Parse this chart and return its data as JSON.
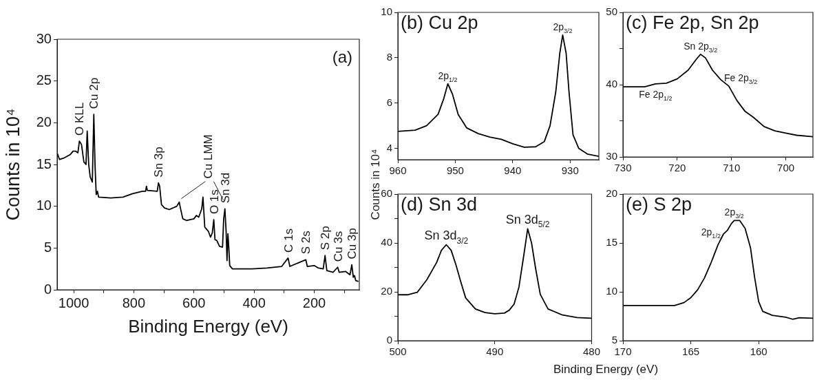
{
  "chart_data": [
    {
      "type": "line",
      "title": "(a)",
      "xlabel": "Binding Energy (eV)",
      "ylabel": "Counts in 10⁴",
      "color": "#000000",
      "xlim": [
        1055,
        50
      ],
      "xticks": [
        1000,
        {
          "value": 900,
          "label": null
        },
        800,
        {
          "value": 700,
          "label": null
        },
        600,
        {
          "value": 500,
          "label": null
        },
        400,
        {
          "value": 300,
          "label": null
        },
        200,
        {
          "value": 100,
          "label": null
        }
      ],
      "ylim": [
        0,
        30
      ],
      "yticks": [
        0,
        5,
        10,
        15,
        20,
        25,
        30
      ],
      "x": [
        1054,
        1047,
        1031,
        1011,
        1002,
        994,
        986,
        981,
        974,
        966,
        959,
        955,
        950,
        945,
        938,
        933,
        929,
        925,
        921,
        917,
        877,
        836,
        804,
        771,
        761,
        758,
        755,
        722,
        718,
        714,
        708,
        698,
        682,
        657,
        649,
        645,
        637,
        625,
        600,
        592,
        584,
        574,
        570,
        564,
        552,
        545,
        539,
        534,
        530,
        524,
        515,
        505,
        501,
        497,
        493,
        490,
        487,
        484,
        481,
        472,
        406,
        357,
        308,
        287,
        281,
        228,
        223,
        200,
        186,
        170,
        164,
        158,
        137,
        122,
        117,
        96,
        81,
        75,
        70,
        66,
        62,
        53
      ],
      "values": [
        16.3,
        15.6,
        15.8,
        16.2,
        16.6,
        16.6,
        16.4,
        17.8,
        17.4,
        15.3,
        15.0,
        19.0,
        15.0,
        13.5,
        12.9,
        21.0,
        15.0,
        11.4,
        11.8,
        11.1,
        11.0,
        11.1,
        11.5,
        11.8,
        11.8,
        12.4,
        11.9,
        11.8,
        12.8,
        12.4,
        10.2,
        9.8,
        9.6,
        10.0,
        10.5,
        9.8,
        8.5,
        8.3,
        8.5,
        8.9,
        8.7,
        9.7,
        11.1,
        7.5,
        7.0,
        6.3,
        6.8,
        8.4,
        6.0,
        5.9,
        5.2,
        5.1,
        8.5,
        9.7,
        7.0,
        3.5,
        6.7,
        5.0,
        2.9,
        2.5,
        2.5,
        2.6,
        2.8,
        3.8,
        2.8,
        3.6,
        2.8,
        2.9,
        2.6,
        2.5,
        4.1,
        2.3,
        2.1,
        2.7,
        2.1,
        2.2,
        1.8,
        3.0,
        1.5,
        1.7,
        1.1,
        1.0
      ],
      "annotations": [
        {
          "text": "O KLL",
          "x": 981,
          "y": 17.8
        },
        {
          "text": "Cu 2p",
          "x": 933,
          "y": 21.0
        },
        {
          "text": "Sn 3p",
          "x": 718,
          "y": 12.8
        },
        {
          "text": "Cu LMM",
          "x": 649,
          "y": 10.5
        },
        {
          "text": "O 1s",
          "x": 534,
          "y": 8.4
        },
        {
          "text": "Sn 3d",
          "x": 497,
          "y": 9.7
        },
        {
          "text": "C 1s",
          "x": 287,
          "y": 3.8
        },
        {
          "text": "S 2s",
          "x": 228,
          "y": 3.6
        },
        {
          "text": "S 2p",
          "x": 164,
          "y": 4.1
        },
        {
          "text": "Cu 3s",
          "x": 122,
          "y": 2.7
        },
        {
          "text": "Cu 3p",
          "x": 75,
          "y": 3.0
        }
      ]
    },
    {
      "type": "line",
      "title": "(b) Cu 2p",
      "ylabel": "Counts in 10⁴",
      "color": "#000000",
      "xlim": [
        960,
        925
      ],
      "xticks": [
        960,
        950,
        940,
        930
      ],
      "ylim": [
        3.5,
        10
      ],
      "yticks": [
        4,
        6,
        8,
        10
      ],
      "x": [
        960,
        957,
        955,
        953,
        952,
        951.3,
        950.5,
        949.5,
        948,
        946,
        944,
        942,
        940,
        938,
        936,
        934.5,
        933.5,
        932.5,
        931.8,
        931.3,
        930.7,
        930.2,
        929.5,
        928.5,
        927,
        925
      ],
      "values": [
        4.75,
        4.8,
        5.0,
        5.5,
        6.2,
        6.85,
        6.4,
        5.5,
        4.9,
        4.65,
        4.5,
        4.4,
        4.2,
        4.05,
        4.07,
        4.3,
        5.0,
        6.5,
        8.2,
        9.0,
        8.2,
        6.5,
        4.6,
        4.0,
        3.75,
        3.65
      ],
      "annotations": [
        {
          "text": "2p$_{1/2}$",
          "x": 951.3,
          "y": 6.85
        },
        {
          "text": "2p$_{3/2}$",
          "x": 931.3,
          "y": 9.0
        }
      ]
    },
    {
      "type": "line",
      "title": "(c) Fe 2p, Sn 2p",
      "color": "#000000",
      "xlim": [
        730,
        695
      ],
      "xticks": [
        730,
        720,
        710,
        700
      ],
      "ylim": [
        30,
        50
      ],
      "yticks": [
        30,
        {
          "value": 35,
          "label": null
        },
        40,
        {
          "value": 45,
          "label": null
        },
        50
      ],
      "x": [
        730,
        726,
        724,
        722,
        720,
        718,
        716.5,
        715.7,
        714.8,
        713.5,
        712,
        710.5,
        709,
        707.5,
        706,
        704,
        702,
        700,
        698,
        695
      ],
      "values": [
        39.7,
        39.7,
        40.1,
        40.2,
        40.8,
        42.0,
        43.5,
        44.2,
        43.7,
        42.0,
        40.7,
        39.8,
        37.8,
        36.3,
        35.5,
        34.2,
        33.6,
        33.3,
        33.0,
        32.8
      ],
      "annotations": [
        {
          "text": "Sn 2p$_{3/2}$",
          "x": 715.7,
          "y": 44.2
        },
        {
          "text": "Fe 2p$_{3/2}$",
          "x": 712,
          "y": 40.7
        },
        {
          "text": "Fe 2p$_{1/2}$",
          "x": 724,
          "y": 40.1
        }
      ]
    },
    {
      "type": "line",
      "title": "(d) Sn 3d",
      "xlabel": "Binding Energy (eV)",
      "color": "#000000",
      "xlim": [
        500,
        480
      ],
      "xticks": [
        500,
        490,
        480
      ],
      "ylim": [
        0,
        60
      ],
      "yticks": [
        0,
        {
          "value": 10,
          "label": null
        },
        20,
        {
          "value": 30,
          "label": null
        },
        40,
        {
          "value": 50,
          "label": null
        },
        60
      ],
      "x": [
        500,
        499,
        498,
        497,
        496,
        495.5,
        495,
        494.5,
        494,
        493.5,
        493,
        492,
        491,
        490,
        489,
        488.5,
        488,
        487.5,
        487,
        486.6,
        486.2,
        485.8,
        485.3,
        484.5,
        483,
        481.5,
        480
      ],
      "values": [
        18.8,
        18.8,
        19.8,
        25,
        32,
        37,
        39.3,
        37,
        31,
        24,
        17.5,
        13,
        11.5,
        11,
        11.3,
        12.5,
        15,
        22,
        35,
        45.8,
        40,
        30,
        19,
        13,
        10.5,
        9.5,
        9.2
      ],
      "annotations": [
        {
          "text": "Sn 3d$_{3/2}$",
          "x": 495,
          "y": 39.3
        },
        {
          "text": "Sn 3d$_{5/2}$",
          "x": 486.6,
          "y": 45.8
        }
      ]
    },
    {
      "type": "line",
      "title": "(e) S 2p",
      "color": "#000000",
      "xlim": [
        170,
        156
      ],
      "xticks": [
        170,
        165,
        160
      ],
      "ylim": [
        5,
        20
      ],
      "yticks": [
        5,
        10,
        15,
        20
      ],
      "x": [
        170,
        168,
        166.2,
        165.5,
        165,
        164.5,
        164,
        163.5,
        163,
        162.6,
        162.3,
        162,
        161.8,
        161.4,
        161,
        160.6,
        160.3,
        160,
        159.7,
        159,
        158,
        157.5,
        157,
        156
      ],
      "values": [
        8.6,
        8.6,
        8.6,
        8.9,
        9.4,
        10.2,
        11.4,
        13.0,
        14.8,
        15.9,
        16.3,
        17.0,
        17.3,
        17.3,
        16.5,
        14.5,
        11.5,
        9.0,
        8.0,
        7.6,
        7.4,
        7.2,
        7.35,
        7.3
      ],
      "annotations": [
        {
          "text": "2p$_{1/2}$",
          "x": 162.6,
          "y": 15.9
        },
        {
          "text": "2p$_{3/2}$",
          "x": 161.8,
          "y": 17.3
        }
      ]
    }
  ]
}
